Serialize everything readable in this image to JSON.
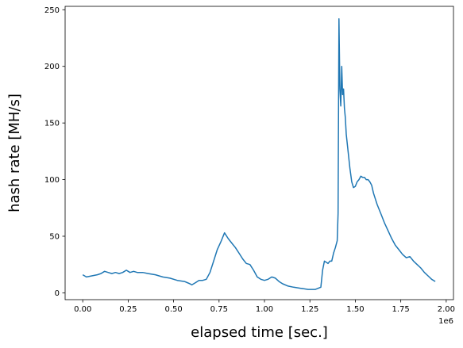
{
  "chart_data": {
    "type": "line",
    "title": "",
    "xlabel": "elapsed time [sec.]",
    "ylabel": "hash rate [MH/s]",
    "x_offset_label": "1e6",
    "xlim": [
      -0.097,
      2.04
    ],
    "ylim": [
      -6,
      253
    ],
    "grid": false,
    "legend": "none",
    "x_ticks": [
      0,
      0.25,
      0.5,
      0.75,
      1.0,
      1.25,
      1.5,
      1.75,
      2.0
    ],
    "x_tick_labels": [
      "0.00",
      "0.25",
      "0.50",
      "0.75",
      "1.00",
      "1.25",
      "1.50",
      "1.75",
      "2.00"
    ],
    "y_ticks": [
      0,
      50,
      100,
      150,
      200,
      250
    ],
    "y_tick_labels": [
      "0",
      "50",
      "100",
      "150",
      "200",
      "250"
    ],
    "series": [
      {
        "color": "#1f77b4",
        "x": [
          0.0,
          0.02,
          0.05,
          0.08,
          0.1,
          0.12,
          0.14,
          0.16,
          0.18,
          0.2,
          0.22,
          0.24,
          0.26,
          0.28,
          0.3,
          0.33,
          0.36,
          0.4,
          0.44,
          0.48,
          0.52,
          0.56,
          0.59,
          0.6,
          0.62,
          0.64,
          0.66,
          0.68,
          0.7,
          0.72,
          0.74,
          0.76,
          0.78,
          0.8,
          0.82,
          0.84,
          0.86,
          0.88,
          0.9,
          0.92,
          0.94,
          0.96,
          0.98,
          1.0,
          1.02,
          1.04,
          1.06,
          1.08,
          1.1,
          1.13,
          1.16,
          1.2,
          1.24,
          1.28,
          1.31,
          1.32,
          1.33,
          1.34,
          1.35,
          1.36,
          1.37,
          1.38,
          1.39,
          1.4,
          1.405,
          1.41,
          1.415,
          1.42,
          1.425,
          1.43,
          1.435,
          1.44,
          1.445,
          1.45,
          1.46,
          1.47,
          1.48,
          1.49,
          1.5,
          1.51,
          1.52,
          1.53,
          1.54,
          1.55,
          1.56,
          1.57,
          1.58,
          1.59,
          1.6,
          1.62,
          1.64,
          1.66,
          1.68,
          1.7,
          1.72,
          1.74,
          1.76,
          1.78,
          1.8,
          1.82,
          1.84,
          1.86,
          1.88,
          1.9,
          1.92,
          1.94
        ],
        "y": [
          16,
          14,
          15,
          16,
          17,
          19,
          18,
          17,
          18,
          17,
          18,
          20,
          18,
          19,
          18,
          18,
          17,
          16,
          14,
          13,
          11,
          10,
          8,
          7,
          9,
          11,
          11,
          12,
          18,
          28,
          38,
          45,
          53,
          48,
          44,
          40,
          35,
          30,
          26,
          25,
          20,
          14,
          12,
          11,
          12,
          14,
          13,
          10,
          8,
          6,
          5,
          4,
          3,
          3,
          5,
          20,
          28,
          27,
          26,
          28,
          28,
          35,
          40,
          46,
          70,
          242,
          180,
          165,
          200,
          175,
          180,
          163,
          155,
          140,
          125,
          110,
          98,
          93,
          94,
          98,
          100,
          103,
          102,
          102,
          100,
          100,
          98,
          95,
          88,
          78,
          70,
          62,
          55,
          48,
          42,
          38,
          34,
          31,
          32,
          28,
          25,
          22,
          18,
          15,
          12,
          10
        ]
      }
    ]
  }
}
